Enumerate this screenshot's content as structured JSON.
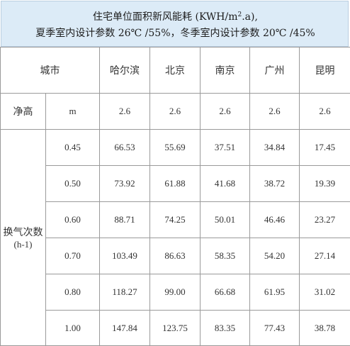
{
  "title": {
    "line1_prefix": "住宅单位面积新风能耗 (KWH/m",
    "line1_sup": "2",
    "line1_suffix": ".a),",
    "line2": "夏季室内设计参数 26℃ /55%，冬季室内设计参数 20℃ /45%"
  },
  "table": {
    "header_city": "城市",
    "cities": [
      "哈尔滨",
      "北京",
      "南京",
      "广州",
      "昆明"
    ],
    "clear_height": {
      "label": "净高",
      "unit": "m",
      "values": [
        "2.6",
        "2.6",
        "2.6",
        "2.6",
        "2.6"
      ]
    },
    "ach": {
      "label": "换气次数",
      "unit": "(h-1)",
      "rows": [
        {
          "rate": "0.45",
          "values": [
            "66.53",
            "55.69",
            "37.51",
            "34.84",
            "17.45"
          ]
        },
        {
          "rate": "0.50",
          "values": [
            "73.92",
            "61.88",
            "41.68",
            "38.72",
            "19.39"
          ]
        },
        {
          "rate": "0.60",
          "values": [
            "88.71",
            "74.25",
            "50.01",
            "46.46",
            "23.27"
          ]
        },
        {
          "rate": "0.70",
          "values": [
            "103.49",
            "86.63",
            "58.35",
            "54.20",
            "27.14"
          ]
        },
        {
          "rate": "0.80",
          "values": [
            "118.27",
            "99.00",
            "66.68",
            "61.95",
            "31.02"
          ]
        },
        {
          "rate": "1.00",
          "values": [
            "147.84",
            "123.75",
            "83.35",
            "77.43",
            "38.78"
          ]
        }
      ]
    }
  },
  "colors": {
    "title_background": "#dcebf7",
    "grid_line": "#9a9a9a",
    "text": "#333333"
  }
}
